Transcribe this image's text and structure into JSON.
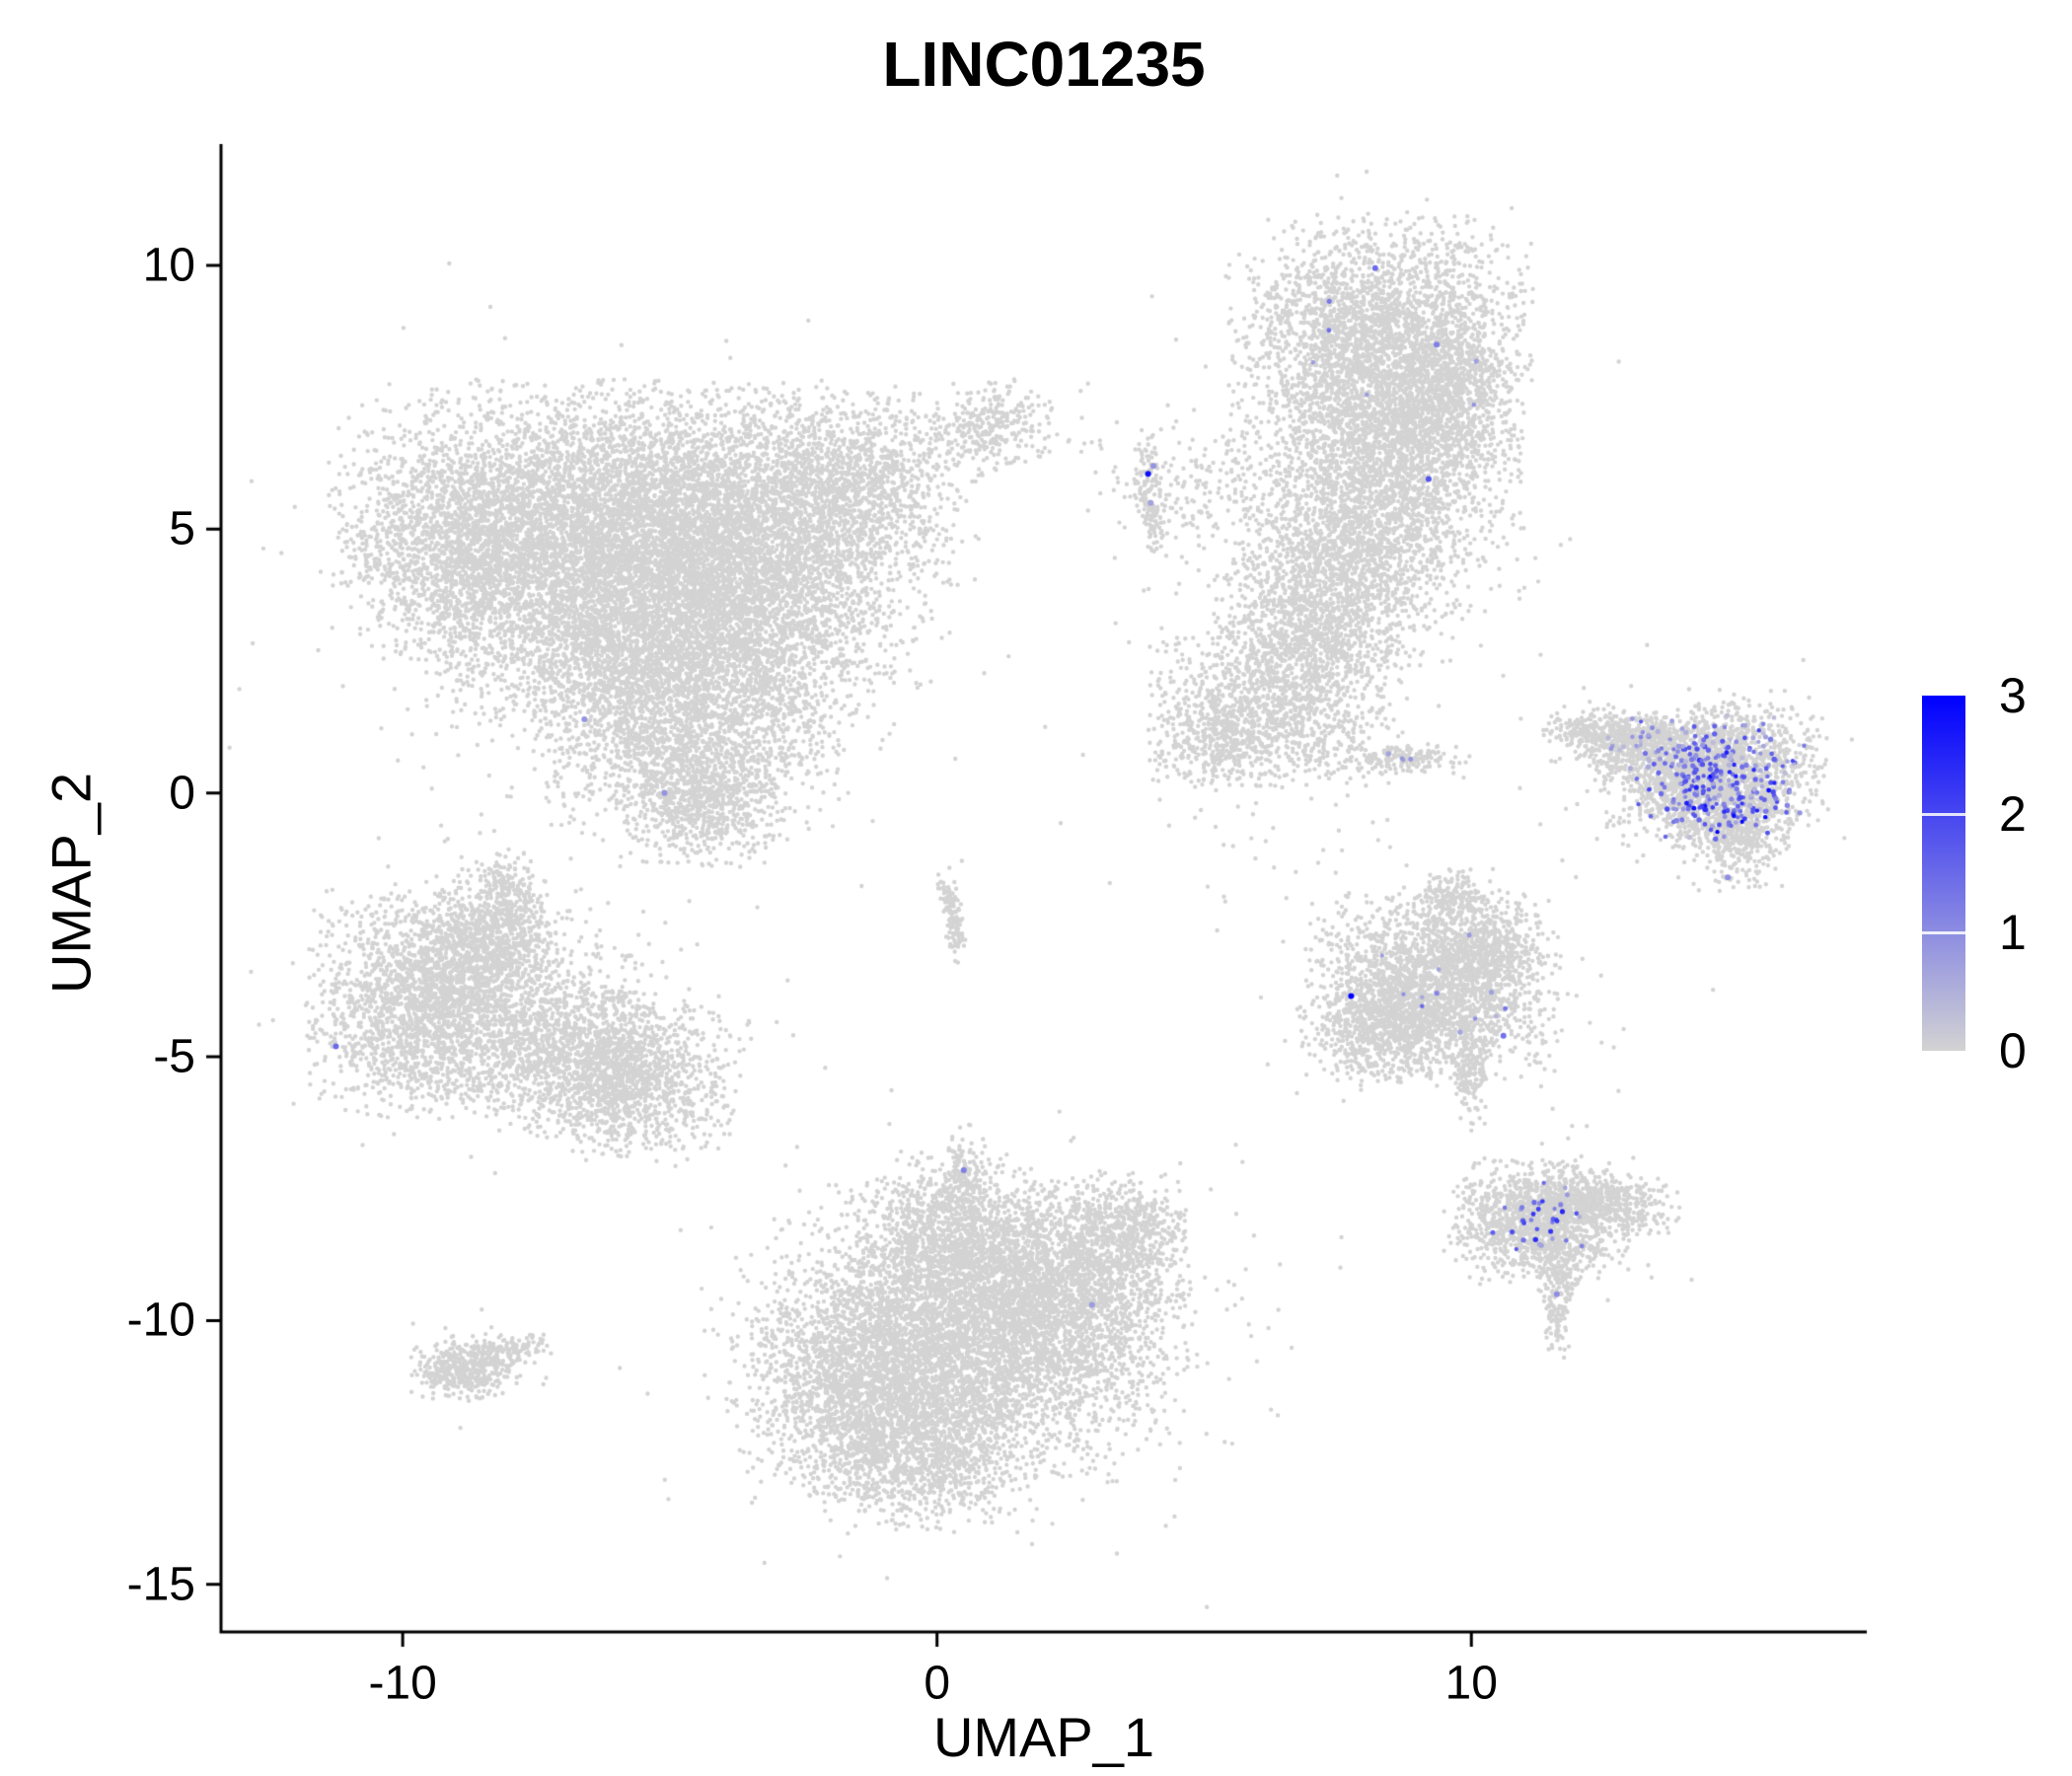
{
  "title": "LINC01235",
  "axes": {
    "x": {
      "label": "UMAP_1",
      "ticks": [
        -10,
        0,
        10
      ],
      "range": [
        -13.4,
        17.4
      ]
    },
    "y": {
      "label": "UMAP_2",
      "ticks": [
        10,
        5,
        0,
        -5,
        -10,
        -15
      ],
      "range": [
        -15.9,
        12.3
      ]
    }
  },
  "legend": {
    "ticks": [
      3,
      2,
      1,
      0
    ],
    "vmin": 0,
    "vmax": 3,
    "low_color": "#d3d3d3",
    "high_color": "#0000ff"
  },
  "chart_data": {
    "type": "scatter",
    "title": "LINC01235",
    "xlabel": "UMAP_1",
    "ylabel": "UMAP_2",
    "xlim": [
      -13.4,
      17.4
    ],
    "ylim": [
      -15.9,
      12.3
    ],
    "grid": false,
    "legend_position": "right",
    "point_color_background": "#d3d3d3",
    "representation": "UMAP single-cell feature plot; non-expressing cells are grey gaussian-mixture clusters, expressing cells are blue-tinted overlay points colored by expression 0-3",
    "component_format": "[center_x, center_y, sigma_x, sigma_y, n_points, rotation_deg, truncation_sigma(0=none)]",
    "clusters": [
      {
        "name": "upper-left-large-blob",
        "components": [
          [
            -6.8,
            5.2,
            2.0,
            1.15,
            4500,
            0,
            2.3
          ],
          [
            -3.6,
            4.8,
            1.7,
            1.25,
            3800,
            0,
            2.3
          ],
          [
            -5.2,
            3.0,
            1.9,
            1.0,
            3200,
            0,
            2.3
          ],
          [
            -4.6,
            1.3,
            1.3,
            0.9,
            1800,
            0,
            2.3
          ],
          [
            -4.4,
            -0.2,
            0.7,
            0.55,
            700,
            0,
            2.3
          ],
          [
            -8.9,
            4.3,
            1.0,
            0.9,
            1000,
            -20,
            2.3
          ],
          [
            -1.5,
            6.0,
            1.0,
            0.8,
            900,
            0,
            2.3
          ],
          [
            1.0,
            6.9,
            0.55,
            0.4,
            300,
            15,
            2.3
          ],
          [
            -5.5,
            3.5,
            3.2,
            2.2,
            400,
            0,
            0
          ]
        ]
      },
      {
        "name": "upper-right-tall-blob",
        "components": [
          [
            8.3,
            8.6,
            1.25,
            1.05,
            2600,
            0,
            2.3
          ],
          [
            8.6,
            6.6,
            1.05,
            1.1,
            2000,
            0,
            2.3
          ],
          [
            7.7,
            4.6,
            1.0,
            1.0,
            1500,
            0,
            2.3
          ],
          [
            7.0,
            2.9,
            0.85,
            0.8,
            1000,
            0,
            2.3
          ],
          [
            6.2,
            1.5,
            1.1,
            0.6,
            900,
            -15,
            2.3
          ],
          [
            5.3,
            0.9,
            0.6,
            0.4,
            300,
            0,
            2.3
          ],
          [
            9.6,
            7.6,
            0.5,
            0.7,
            400,
            0,
            2.3
          ],
          [
            7.8,
            5.5,
            1.8,
            2.5,
            350,
            0,
            0
          ],
          [
            8.7,
            0.65,
            0.55,
            0.13,
            160,
            0,
            2.3
          ],
          [
            5.0,
            5.8,
            1.0,
            0.5,
            180,
            0,
            0
          ],
          [
            4.0,
            5.6,
            0.13,
            0.55,
            130,
            5,
            2.3
          ]
        ]
      },
      {
        "name": "far-right-fan-cluster",
        "components": [
          [
            14.5,
            0.35,
            0.95,
            0.6,
            1700,
            0,
            2.3
          ],
          [
            13.2,
            0.95,
            0.8,
            0.28,
            500,
            -8,
            2.3
          ],
          [
            14.9,
            -0.75,
            0.45,
            0.45,
            450,
            0,
            2.3
          ],
          [
            12.4,
            1.15,
            0.5,
            0.18,
            180,
            -5,
            2.3
          ],
          [
            14.2,
            0.3,
            1.3,
            0.9,
            200,
            0,
            0
          ]
        ]
      },
      {
        "name": "mid-right-blob",
        "components": [
          [
            9.3,
            -3.6,
            1.05,
            0.8,
            1900,
            0,
            2.3
          ],
          [
            8.4,
            -4.4,
            0.7,
            0.5,
            700,
            0,
            2.3
          ],
          [
            10.3,
            -3.0,
            0.5,
            0.5,
            450,
            0,
            2.3
          ],
          [
            10.0,
            -5.2,
            0.14,
            0.5,
            150,
            0,
            2.3
          ],
          [
            9.6,
            -1.95,
            0.3,
            0.22,
            140,
            0,
            2.3
          ],
          [
            9.3,
            -3.7,
            1.5,
            1.2,
            150,
            0,
            0
          ]
        ]
      },
      {
        "name": "lower-right-comet",
        "components": [
          [
            11.3,
            -8.1,
            0.75,
            0.5,
            1300,
            0,
            2.3
          ],
          [
            12.6,
            -7.75,
            0.6,
            0.25,
            380,
            -8,
            2.3
          ],
          [
            11.65,
            -9.0,
            0.2,
            0.35,
            130,
            0,
            2.3
          ],
          [
            11.6,
            -9.9,
            0.1,
            0.4,
            90,
            0,
            2.3
          ],
          [
            11.6,
            -8.0,
            1.1,
            0.7,
            120,
            0,
            0
          ]
        ]
      },
      {
        "name": "left-middle-two-lobe",
        "components": [
          [
            -9.4,
            -4.0,
            1.05,
            0.95,
            2300,
            0,
            2.3
          ],
          [
            -8.4,
            -2.7,
            0.65,
            0.55,
            700,
            30,
            2.3
          ],
          [
            -8.05,
            -1.9,
            0.22,
            0.35,
            130,
            10,
            2.3
          ],
          [
            -6.0,
            -5.3,
            1.0,
            0.7,
            1700,
            -10,
            2.3
          ],
          [
            -7.2,
            -4.5,
            0.9,
            0.8,
            450,
            0,
            2.3
          ],
          [
            -8.0,
            -4.0,
            1.8,
            1.4,
            300,
            0,
            0
          ]
        ]
      },
      {
        "name": "bottom-center-large-blob",
        "components": [
          [
            0.8,
            -10.2,
            1.7,
            1.25,
            4200,
            0,
            2.3
          ],
          [
            -1.3,
            -11.2,
            1.15,
            0.95,
            2000,
            0,
            2.3
          ],
          [
            2.5,
            -9.1,
            1.0,
            0.85,
            1500,
            0,
            2.3
          ],
          [
            0.2,
            -8.4,
            0.8,
            0.7,
            900,
            0,
            2.3
          ],
          [
            0.5,
            -7.3,
            0.18,
            0.45,
            130,
            0,
            2.3
          ],
          [
            -0.3,
            -12.6,
            1.0,
            0.6,
            900,
            0,
            2.3
          ],
          [
            3.6,
            -8.2,
            0.5,
            0.4,
            300,
            -20,
            2.3
          ],
          [
            0.8,
            -10.3,
            2.6,
            1.9,
            350,
            0,
            0
          ]
        ]
      },
      {
        "name": "small-bottom-left-comet",
        "components": [
          [
            -8.8,
            -10.9,
            0.45,
            0.28,
            380,
            8,
            2.3
          ],
          [
            -7.95,
            -10.55,
            0.3,
            0.12,
            90,
            15,
            2.3
          ],
          [
            -8.6,
            -10.8,
            0.7,
            0.45,
            60,
            0,
            0
          ]
        ]
      },
      {
        "name": "tiny-center-sliver",
        "components": [
          [
            0.28,
            -2.3,
            0.09,
            0.4,
            130,
            10,
            2.3
          ]
        ]
      },
      {
        "name": "scattered-outliers",
        "components": [
          [
            6.0,
            -0.8,
            0.8,
            0.8,
            25,
            0,
            0
          ],
          [
            2.8,
            7.0,
            0.5,
            0.4,
            12,
            0,
            0
          ],
          [
            5.3,
            3.0,
            1.0,
            1.2,
            25,
            0,
            0
          ],
          [
            -11.8,
            -4.6,
            0.4,
            0.4,
            8,
            0,
            0
          ]
        ]
      }
    ],
    "expression_cluster_format": "[center_x, center_y, sigma_x, sigma_y, n_points, value_min, value_max]",
    "expression_clusters": [
      [
        14.6,
        0.3,
        0.75,
        0.55,
        240,
        0.3,
        2.0
      ],
      [
        14.75,
        0.05,
        0.45,
        0.4,
        55,
        1.2,
        3.0
      ],
      [
        13.3,
        0.95,
        0.6,
        0.22,
        25,
        0.3,
        1.2
      ],
      [
        11.4,
        -8.05,
        0.55,
        0.4,
        35,
        0.5,
        2.6
      ],
      [
        9.4,
        -3.8,
        0.75,
        0.55,
        12,
        0.4,
        1.8
      ],
      [
        8.4,
        7.5,
        0.9,
        1.6,
        6,
        0.5,
        1.5
      ],
      [
        8.75,
        0.68,
        0.3,
        0.1,
        4,
        0.5,
        1.3
      ]
    ],
    "expression_point_format": "[x, y, value]",
    "expression_points": [
      [
        8.2,
        9.95,
        1.5
      ],
      [
        9.35,
        8.5,
        1.2
      ],
      [
        9.2,
        5.95,
        1.8
      ],
      [
        3.95,
        6.05,
        2.8
      ],
      [
        4.0,
        5.5,
        0.7
      ],
      [
        4.05,
        6.2,
        0.9
      ],
      [
        -11.25,
        -4.8,
        1.5
      ],
      [
        -6.6,
        1.4,
        0.9
      ],
      [
        -5.1,
        0.0,
        0.9
      ],
      [
        0.5,
        -7.15,
        1.2
      ],
      [
        2.9,
        -9.7,
        0.8
      ],
      [
        7.75,
        -3.85,
        3.0
      ],
      [
        10.6,
        -4.6,
        1.4
      ],
      [
        14.8,
        -1.6,
        1.0
      ],
      [
        11.6,
        -9.5,
        1.0
      ]
    ]
  }
}
